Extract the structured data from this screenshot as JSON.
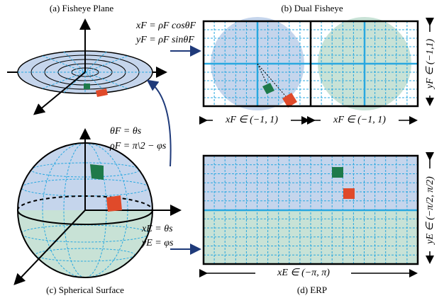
{
  "captions": [
    "(a) Fisheye Plane",
    "(b) Dual Fisheye",
    "(c) Spherical Surface",
    "(d) ERP"
  ],
  "equations": [
    "xF = ρF cosθF",
    "yF = ρF sinθF",
    "θF = θs",
    "ρF = π\\2 − φs",
    "xE = θs",
    "yE = φs"
  ],
  "axis_labels": [
    "xF ∈ (−1, 1)",
    "xF ∈ (−1, 1)",
    "yF ∈ (−1,1)",
    "xE ∈ (−π, π)",
    "yE ∈ (−π/2, π/2)"
  ]
}
